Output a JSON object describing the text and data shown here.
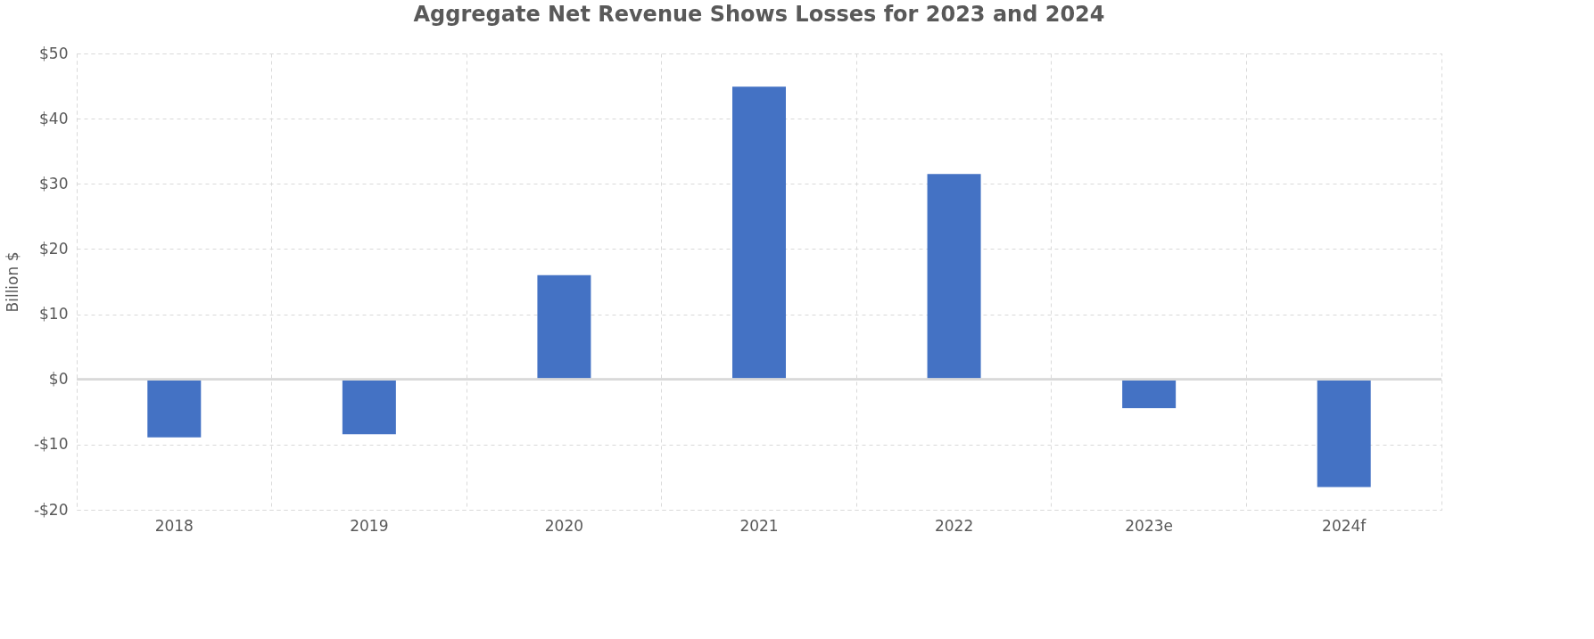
{
  "chart_data": {
    "type": "bar",
    "title": "Aggregate Net Revenue Shows Losses for 2023 and 2024",
    "ylabel": "Billion $",
    "categories": [
      "2018",
      "2019",
      "2020",
      "2021",
      "2022",
      "2023e",
      "2024f"
    ],
    "values": [
      -8.9,
      -8.4,
      16.0,
      44.9,
      31.5,
      -4.4,
      -16.5
    ],
    "color": "#4472c4",
    "ylim": [
      -20,
      50
    ],
    "yticks": [
      {
        "value": -20,
        "label": "-$20"
      },
      {
        "value": -10,
        "label": "-$10"
      },
      {
        "value": 0,
        "label": "$0"
      },
      {
        "value": 10,
        "label": "$10"
      },
      {
        "value": 20,
        "label": "$20"
      },
      {
        "value": 30,
        "label": "$30"
      },
      {
        "value": 40,
        "label": "$40"
      },
      {
        "value": 50,
        "label": "$50"
      }
    ],
    "grid": true
  }
}
